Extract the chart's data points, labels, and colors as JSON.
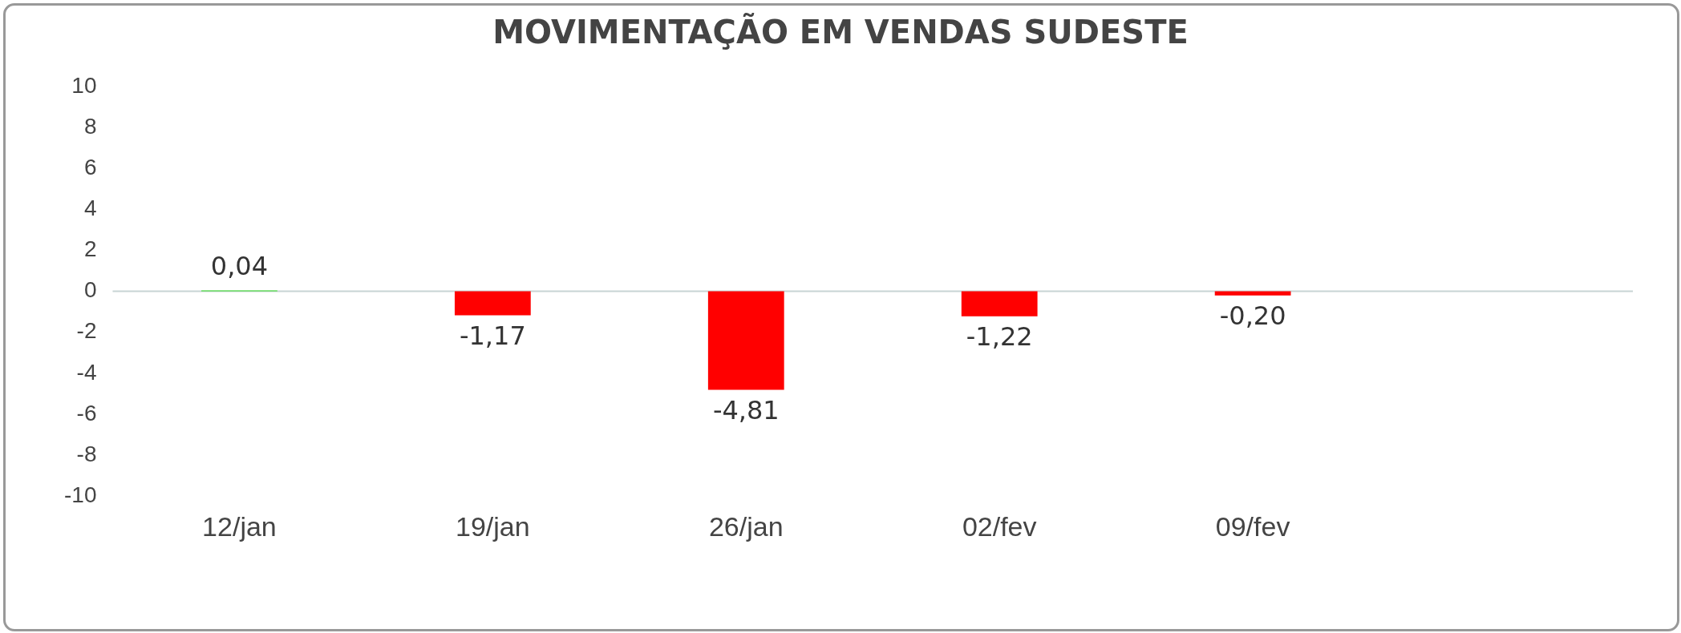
{
  "chart_data": {
    "type": "bar",
    "title": "MOVIMENTAÇÃO EM VENDAS SUDESTE",
    "categories": [
      "12/jan",
      "19/jan",
      "26/jan",
      "02/fev",
      "09/fev",
      null
    ],
    "values": [
      0.04,
      -1.17,
      -4.81,
      -1.22,
      -0.2,
      null
    ],
    "colors": [
      "#33dd22",
      "#ff0000",
      "#ff0000",
      "#ff0000",
      "#ff0000",
      "#ff0000"
    ],
    "value_labels": [
      "0,04",
      "-1,17",
      "-4,81",
      "-1,22",
      "-0,20",
      null
    ],
    "ylim": [
      -10,
      10
    ],
    "yticks": [
      -10,
      -8,
      -6,
      -4,
      -2,
      0,
      2,
      4,
      6,
      8,
      10
    ],
    "grid": false,
    "legend": false,
    "ref_lines": [
      {
        "axis": "y",
        "value": 0,
        "color": "#c8d4d4"
      }
    ]
  }
}
